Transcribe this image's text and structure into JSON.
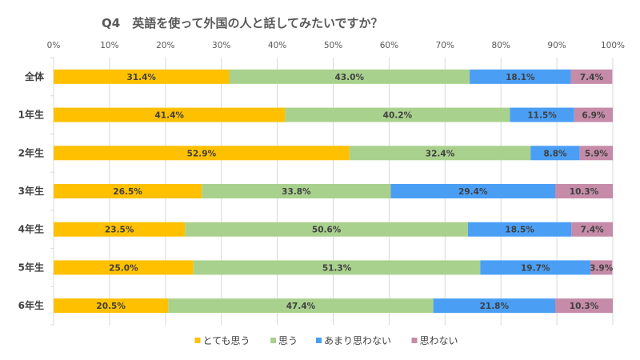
{
  "chart_data": {
    "type": "bar",
    "orientation": "horizontal",
    "stacked": "percent",
    "title": "Q4　英語を使って外国の人と話してみたいですか？",
    "xlabel": "",
    "ylabel": "",
    "xlim": [
      0,
      100
    ],
    "x_ticks": [
      "0%",
      "10%",
      "20%",
      "30%",
      "40%",
      "50%",
      "60%",
      "70%",
      "80%",
      "90%",
      "100%"
    ],
    "x_axis_position": "top",
    "grid": true,
    "legend": "bottom",
    "categories": [
      "全体",
      "1年生",
      "2年生",
      "3年生",
      "4年生",
      "5年生",
      "6年生"
    ],
    "series": [
      {
        "name": "とても思う",
        "color": "#FFC000",
        "values": [
          31.4,
          41.4,
          52.9,
          26.5,
          23.5,
          25.0,
          20.5
        ]
      },
      {
        "name": "思う",
        "color": "#A9D18E",
        "values": [
          43.0,
          40.2,
          32.4,
          33.8,
          50.6,
          51.3,
          47.4
        ]
      },
      {
        "name": "あまり思わない",
        "color": "#4A9FF5",
        "values": [
          18.1,
          11.5,
          8.8,
          29.4,
          18.5,
          19.7,
          21.8
        ]
      },
      {
        "name": "思わない",
        "color": "#C58BA8",
        "values": [
          7.4,
          6.9,
          5.9,
          10.3,
          7.4,
          3.9,
          10.3
        ]
      }
    ],
    "data_label_format": "{v}%"
  }
}
